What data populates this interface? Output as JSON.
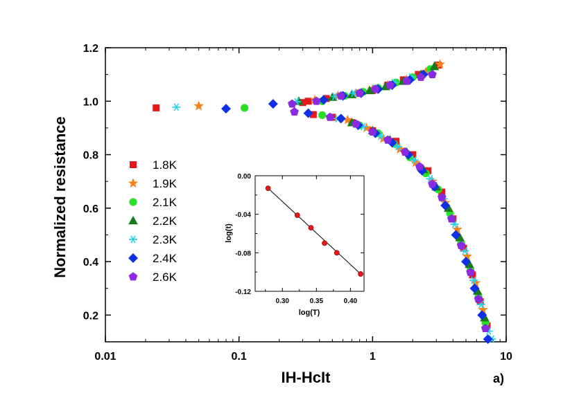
{
  "chart_data": [
    {
      "type": "scatter",
      "panel_label": "a)",
      "xlabel": "IH-HcIt",
      "ylabel": "Normalized resistance",
      "xscale": "log",
      "xlim": [
        0.01,
        10
      ],
      "ylim": [
        0.1,
        1.2
      ],
      "xticks": [
        0.01,
        0.1,
        1,
        10
      ],
      "xtick_labels": [
        "0.01",
        "0.1",
        "1",
        "10"
      ],
      "yticks": [
        0.2,
        0.4,
        0.6,
        0.8,
        1.0,
        1.2
      ],
      "ytick_labels": [
        "0.2",
        "0.4",
        "0.6",
        "0.8",
        "1.0",
        "1.2"
      ],
      "legend_position": "left",
      "series": [
        {
          "name": "1.8K",
          "color": "#e8181a",
          "marker": "square",
          "x": [
            0.024,
            0.3,
            0.33,
            0.45,
            0.6,
            0.8,
            1.0,
            1.3,
            1.7,
            2.2,
            3.1,
            0.36,
            0.5,
            0.7,
            1.0,
            1.5,
            2.0,
            2.6,
            3.3,
            4.0,
            4.8,
            5.6,
            6.4,
            7.2
          ],
          "y": [
            0.975,
            0.995,
            1.0,
            1.01,
            1.02,
            1.03,
            1.04,
            1.06,
            1.08,
            1.1,
            1.135,
            0.95,
            0.94,
            0.92,
            0.89,
            0.85,
            0.8,
            0.74,
            0.66,
            0.56,
            0.45,
            0.35,
            0.25,
            0.16
          ]
        },
        {
          "name": "1.9K",
          "color": "#f5841f",
          "marker": "star",
          "x": [
            0.05,
            0.37,
            0.55,
            0.75,
            1.0,
            1.3,
            1.8,
            2.5,
            3.2,
            0.65,
            0.9,
            1.2,
            1.6,
            2.1,
            2.8,
            3.5,
            4.3,
            5.1,
            5.9,
            6.7
          ],
          "y": [
            0.982,
            1.005,
            1.02,
            1.03,
            1.045,
            1.06,
            1.08,
            1.11,
            1.138,
            0.93,
            0.9,
            0.86,
            0.82,
            0.77,
            0.7,
            0.62,
            0.52,
            0.42,
            0.32,
            0.22
          ]
        },
        {
          "name": "2.1K",
          "color": "#28e028",
          "marker": "circle",
          "x": [
            0.11,
            0.42,
            0.62,
            0.85,
            1.1,
            1.5,
            2.0,
            2.7,
            0.42,
            0.8,
            1.1,
            1.45,
            1.9,
            2.5,
            3.1,
            3.8,
            4.6,
            5.4,
            6.2,
            7.0
          ],
          "y": [
            0.975,
            1.0,
            1.02,
            1.035,
            1.05,
            1.07,
            1.09,
            1.12,
            0.948,
            0.91,
            0.88,
            0.84,
            0.79,
            0.73,
            0.67,
            0.58,
            0.47,
            0.37,
            0.27,
            0.17
          ]
        },
        {
          "name": "2.2K",
          "color": "#1a7a1a",
          "marker": "triangle",
          "x": [
            0.28,
            0.5,
            0.7,
            0.95,
            1.25,
            1.7,
            2.3,
            2.9,
            0.7,
            1.0,
            1.35,
            1.8,
            2.4,
            3.0,
            3.7,
            4.5,
            5.3,
            6.1,
            6.9
          ],
          "y": [
            1.0,
            1.015,
            1.025,
            1.04,
            1.055,
            1.075,
            1.1,
            1.13,
            0.92,
            0.89,
            0.855,
            0.81,
            0.745,
            0.68,
            0.6,
            0.49,
            0.39,
            0.29,
            0.19
          ]
        },
        {
          "name": "2.3K",
          "color": "#22d4f0",
          "marker": "asterisk",
          "x": [
            0.034,
            0.27,
            0.52,
            0.72,
            1.05,
            1.45,
            1.95,
            0.55,
            0.85,
            1.15,
            1.55,
            2.05,
            2.7,
            3.4,
            4.1,
            4.9,
            5.7,
            6.5,
            7.4,
            7.8
          ],
          "y": [
            0.978,
            0.998,
            1.018,
            1.03,
            1.048,
            1.07,
            1.09,
            0.935,
            0.905,
            0.87,
            0.83,
            0.78,
            0.71,
            0.635,
            0.54,
            0.44,
            0.33,
            0.24,
            0.14,
            0.11
          ]
        },
        {
          "name": "2.4K",
          "color": "#1030e8",
          "marker": "diamond",
          "x": [
            0.08,
            0.18,
            0.43,
            0.6,
            0.82,
            1.1,
            1.4,
            1.9,
            2.4,
            0.33,
            0.58,
            0.78,
            1.05,
            1.4,
            1.85,
            2.35,
            2.9,
            3.5,
            4.2,
            5.0,
            5.8,
            6.6,
            7.3
          ],
          "y": [
            0.972,
            0.99,
            1.005,
            1.02,
            1.03,
            1.045,
            1.06,
            1.08,
            1.1,
            0.955,
            0.935,
            0.91,
            0.88,
            0.845,
            0.8,
            0.74,
            0.68,
            0.61,
            0.5,
            0.4,
            0.3,
            0.2,
            0.11
          ]
        },
        {
          "name": "2.6K",
          "color": "#8a2be2",
          "marker": "pentagon",
          "x": [
            0.25,
            0.38,
            0.58,
            0.8,
            1.05,
            1.35,
            1.8,
            2.3,
            2.8,
            0.26,
            0.48,
            0.75,
            1.0,
            1.3,
            1.75,
            2.25,
            2.8,
            3.3,
            3.9,
            4.6,
            5.4,
            6.2,
            7.0
          ],
          "y": [
            0.99,
            1.0,
            1.02,
            1.03,
            1.045,
            1.06,
            1.075,
            1.09,
            1.1,
            0.96,
            0.94,
            0.915,
            0.885,
            0.855,
            0.81,
            0.755,
            0.69,
            0.64,
            0.56,
            0.46,
            0.36,
            0.26,
            0.15
          ]
        }
      ]
    },
    {
      "type": "line",
      "xlabel": "log(T)",
      "ylabel": "log(t)",
      "xlim": [
        0.26,
        0.42
      ],
      "ylim": [
        -0.12,
        0.0
      ],
      "xticks": [
        0.3,
        0.35,
        0.4
      ],
      "xtick_labels": [
        "0.30",
        "0.35",
        "0.40"
      ],
      "yticks": [
        -0.12,
        -0.08,
        -0.04,
        0.0
      ],
      "ytick_labels": [
        "-0.12",
        "-0.08",
        "-0.04",
        "0.00"
      ],
      "points": {
        "x": [
          0.279,
          0.322,
          0.342,
          0.362,
          0.38,
          0.415
        ],
        "y": [
          -0.013,
          -0.041,
          -0.054,
          -0.07,
          -0.08,
          -0.102
        ]
      },
      "fit_line": {
        "x": [
          0.279,
          0.415
        ],
        "y": [
          -0.013,
          -0.102
        ]
      },
      "point_color": "#e8181a"
    }
  ]
}
